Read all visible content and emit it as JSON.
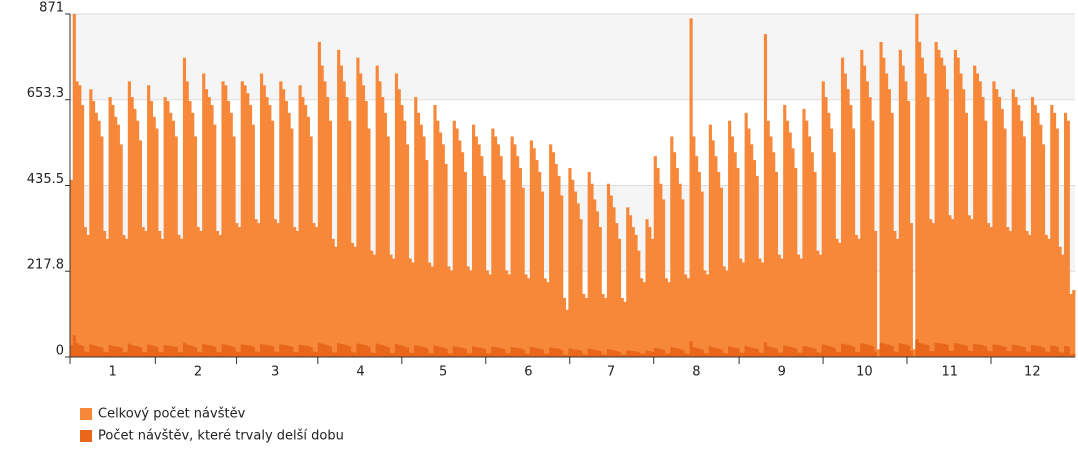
{
  "chart_data": {
    "type": "bar",
    "ylim": [
      0,
      871
    ],
    "yticks": [
      0,
      217.8,
      435.5,
      653.3,
      871
    ],
    "grid": true,
    "legend": "bottom-left",
    "categories": [
      null,
      null,
      null,
      null,
      null,
      null,
      null,
      null,
      null,
      null,
      null,
      null,
      null,
      null,
      null,
      "1",
      null,
      null,
      null,
      null,
      null,
      null,
      null,
      null,
      null,
      null,
      null,
      null,
      null,
      null,
      null,
      null,
      null,
      null,
      null,
      null,
      null,
      null,
      null,
      null,
      null,
      null,
      null,
      null,
      null,
      null,
      "2",
      null,
      null,
      null,
      null,
      null,
      null,
      null,
      null,
      null,
      null,
      null,
      null,
      null,
      null,
      null,
      null,
      null,
      null,
      null,
      null,
      null,
      null,
      null,
      null,
      null,
      null,
      null,
      "3",
      null,
      null,
      null,
      null,
      null,
      null,
      null,
      null,
      null,
      null,
      null,
      null,
      null,
      null,
      null,
      null,
      null,
      null,
      null,
      null,
      null,
      null,
      null,
      null,
      null,
      null,
      null,
      null,
      null,
      null,
      "4",
      null,
      null,
      null,
      null,
      null,
      null,
      null,
      null,
      null,
      null,
      null,
      null,
      null,
      null,
      null,
      null,
      null,
      null,
      null,
      null,
      null,
      null,
      null,
      null,
      null,
      null,
      null,
      null,
      null,
      "5",
      null,
      null,
      null,
      null,
      null,
      null,
      null,
      null,
      null,
      null,
      null,
      null,
      null,
      null,
      null,
      null,
      null,
      null,
      null,
      null,
      null,
      null,
      null,
      null,
      null,
      null,
      null,
      null,
      null,
      null,
      "6",
      null,
      null,
      null,
      null,
      null,
      null,
      null,
      null,
      null,
      null,
      null,
      null,
      null,
      null,
      null,
      null,
      null,
      null,
      null,
      null,
      null,
      null,
      null,
      null,
      null,
      null,
      null,
      null,
      null,
      "7",
      null,
      null,
      null,
      null,
      null,
      null,
      null,
      null,
      null,
      null,
      null,
      null,
      null,
      null,
      null,
      null,
      null,
      null,
      null,
      null,
      null,
      null,
      null,
      null,
      null,
      null,
      null,
      null,
      null,
      null,
      "8",
      null,
      null,
      null,
      null,
      null,
      null,
      null,
      null,
      null,
      null,
      null,
      null,
      null,
      null,
      null,
      null,
      null,
      null,
      null,
      null,
      null,
      null,
      null,
      null,
      null,
      null,
      null,
      null,
      null,
      null,
      "9",
      null,
      null,
      null,
      null,
      null,
      null,
      null,
      null,
      null,
      null,
      null,
      null,
      null,
      null,
      null,
      null,
      null,
      null,
      null,
      null,
      null,
      null,
      null,
      null,
      null,
      null,
      null,
      null,
      null,
      "10",
      null,
      null,
      null,
      null,
      null,
      null,
      null,
      null,
      null,
      null,
      null,
      null,
      null,
      null,
      null,
      null,
      null,
      null,
      null,
      null,
      null,
      null,
      null,
      null,
      null,
      null,
      null,
      null,
      null,
      null,
      "11",
      null,
      null,
      null,
      null,
      null,
      null,
      null,
      null,
      null,
      null,
      null,
      null,
      null,
      null,
      null,
      null,
      null,
      null,
      null,
      null,
      null,
      null,
      null,
      null,
      null,
      null,
      null,
      null,
      null,
      "12",
      null,
      null,
      null,
      null,
      null,
      null,
      null,
      null,
      null,
      null,
      null,
      null,
      null,
      null,
      null
    ],
    "series": [
      {
        "name": "Celkový počet návštěv",
        "color": "#f7883a",
        "values": [
          450,
          871,
          700,
          690,
          640,
          330,
          310,
          680,
          650,
          620,
          600,
          560,
          320,
          300,
          660,
          640,
          610,
          590,
          540,
          310,
          300,
          700,
          660,
          630,
          600,
          550,
          330,
          320,
          690,
          650,
          610,
          580,
          320,
          300,
          660,
          650,
          620,
          600,
          560,
          310,
          300,
          760,
          700,
          650,
          620,
          560,
          330,
          320,
          720,
          680,
          660,
          640,
          590,
          320,
          310,
          700,
          690,
          650,
          620,
          560,
          340,
          330,
          700,
          690,
          670,
          640,
          590,
          350,
          340,
          720,
          690,
          660,
          640,
          600,
          350,
          340,
          700,
          680,
          650,
          620,
          580,
          330,
          320,
          690,
          660,
          640,
          610,
          560,
          340,
          330,
          800,
          740,
          700,
          660,
          600,
          300,
          280,
          780,
          740,
          700,
          660,
          600,
          290,
          280,
          760,
          720,
          690,
          650,
          580,
          270,
          260,
          740,
          700,
          660,
          620,
          560,
          260,
          250,
          720,
          680,
          640,
          600,
          540,
          250,
          240,
          660,
          620,
          590,
          560,
          500,
          240,
          230,
          640,
          600,
          570,
          540,
          490,
          230,
          220,
          600,
          580,
          550,
          520,
          470,
          230,
          220,
          590,
          560,
          540,
          510,
          460,
          220,
          210,
          580,
          560,
          540,
          510,
          450,
          220,
          210,
          560,
          540,
          510,
          480,
          430,
          210,
          200,
          550,
          530,
          500,
          470,
          420,
          200,
          190,
          540,
          520,
          490,
          460,
          410,
          150,
          120,
          480,
          450,
          420,
          390,
          350,
          160,
          150,
          470,
          440,
          400,
          370,
          330,
          160,
          150,
          440,
          410,
          380,
          340,
          300,
          150,
          140,
          380,
          360,
          330,
          310,
          270,
          200,
          190,
          350,
          330,
          300,
          510,
          480,
          440,
          400,
          200,
          190,
          560,
          520,
          480,
          440,
          400,
          210,
          200,
          860,
          560,
          510,
          470,
          420,
          220,
          210,
          590,
          550,
          510,
          470,
          430,
          230,
          220,
          600,
          560,
          520,
          480,
          250,
          240,
          620,
          580,
          540,
          500,
          460,
          250,
          240,
          820,
          600,
          560,
          520,
          470,
          260,
          250,
          640,
          600,
          570,
          530,
          480,
          260,
          250,
          630,
          600,
          560,
          520,
          470,
          270,
          260,
          700,
          660,
          620,
          580,
          520,
          300,
          290,
          760,
          720,
          680,
          640,
          580,
          310,
          300,
          780,
          740,
          700,
          660,
          600,
          320,
          20,
          800,
          760,
          720,
          680,
          620,
          320,
          300,
          780,
          740,
          700,
          650,
          340,
          20,
          871,
          800,
          760,
          720,
          660,
          350,
          340,
          800,
          780,
          760,
          740,
          680,
          360,
          350,
          780,
          760,
          720,
          680,
          620,
          360,
          350,
          740,
          720,
          700,
          660,
          600,
          340,
          330,
          700,
          680,
          660,
          630,
          580,
          330,
          320,
          680,
          660,
          640,
          600,
          560,
          320,
          310,
          660,
          640,
          620,
          590,
          540,
          310,
          300,
          640,
          620,
          580,
          280,
          260,
          620,
          600,
          160,
          170
        ]
      },
      {
        "name": "Počet návštěv, které trvaly delší dobu",
        "color": "#e8671a",
        "values": [
          30,
          55,
          35,
          30,
          28,
          14,
          12,
          32,
          30,
          28,
          26,
          24,
          13,
          12,
          30,
          28,
          27,
          26,
          24,
          12,
          12,
          34,
          30,
          28,
          27,
          25,
          13,
          12,
          32,
          30,
          28,
          26,
          13,
          12,
          30,
          29,
          28,
          27,
          25,
          12,
          12,
          36,
          32,
          30,
          28,
          25,
          13,
          12,
          33,
          31,
          30,
          29,
          26,
          13,
          12,
          32,
          31,
          30,
          28,
          25,
          14,
          13,
          32,
          31,
          30,
          29,
          26,
          14,
          13,
          33,
          31,
          30,
          29,
          27,
          14,
          13,
          32,
          31,
          30,
          28,
          26,
          13,
          12,
          31,
          30,
          29,
          28,
          25,
          14,
          13,
          36,
          34,
          32,
          30,
          27,
          12,
          11,
          35,
          33,
          32,
          30,
          27,
          12,
          11,
          34,
          33,
          31,
          30,
          26,
          11,
          10,
          34,
          32,
          30,
          28,
          25,
          10,
          10,
          33,
          31,
          29,
          27,
          24,
          10,
          10,
          30,
          28,
          27,
          25,
          22,
          10,
          9,
          29,
          27,
          26,
          24,
          22,
          9,
          9,
          27,
          26,
          25,
          23,
          21,
          9,
          9,
          27,
          25,
          24,
          23,
          21,
          9,
          9,
          26,
          25,
          24,
          23,
          20,
          9,
          9,
          25,
          24,
          23,
          22,
          19,
          9,
          8,
          25,
          24,
          22,
          21,
          19,
          8,
          8,
          24,
          23,
          22,
          21,
          18,
          6,
          5,
          22,
          20,
          19,
          18,
          16,
          7,
          6,
          21,
          20,
          18,
          17,
          15,
          7,
          6,
          20,
          18,
          17,
          15,
          13,
          6,
          6,
          17,
          16,
          15,
          14,
          12,
          8,
          8,
          16,
          15,
          13,
          23,
          22,
          20,
          18,
          8,
          8,
          25,
          23,
          22,
          20,
          18,
          9,
          8,
          40,
          25,
          23,
          21,
          19,
          9,
          9,
          27,
          25,
          23,
          21,
          19,
          10,
          9,
          27,
          25,
          23,
          22,
          11,
          10,
          28,
          26,
          24,
          22,
          21,
          11,
          10,
          37,
          27,
          25,
          23,
          21,
          11,
          11,
          29,
          27,
          26,
          24,
          22,
          11,
          11,
          28,
          27,
          25,
          23,
          21,
          12,
          11,
          32,
          30,
          28,
          26,
          23,
          13,
          12,
          34,
          32,
          31,
          29,
          26,
          13,
          13,
          35,
          33,
          32,
          30,
          27,
          14,
          1,
          36,
          34,
          32,
          31,
          28,
          14,
          13,
          35,
          33,
          32,
          29,
          15,
          1,
          45,
          36,
          34,
          32,
          30,
          15,
          15,
          36,
          35,
          34,
          33,
          31,
          16,
          15,
          35,
          34,
          32,
          31,
          28,
          16,
          15,
          33,
          32,
          32,
          30,
          27,
          15,
          15,
          32,
          31,
          30,
          28,
          26,
          15,
          14,
          31,
          30,
          29,
          27,
          25,
          14,
          14,
          30,
          29,
          28,
          27,
          24,
          14,
          13,
          29,
          28,
          26,
          12,
          11,
          28,
          27,
          7,
          8
        ]
      }
    ]
  }
}
